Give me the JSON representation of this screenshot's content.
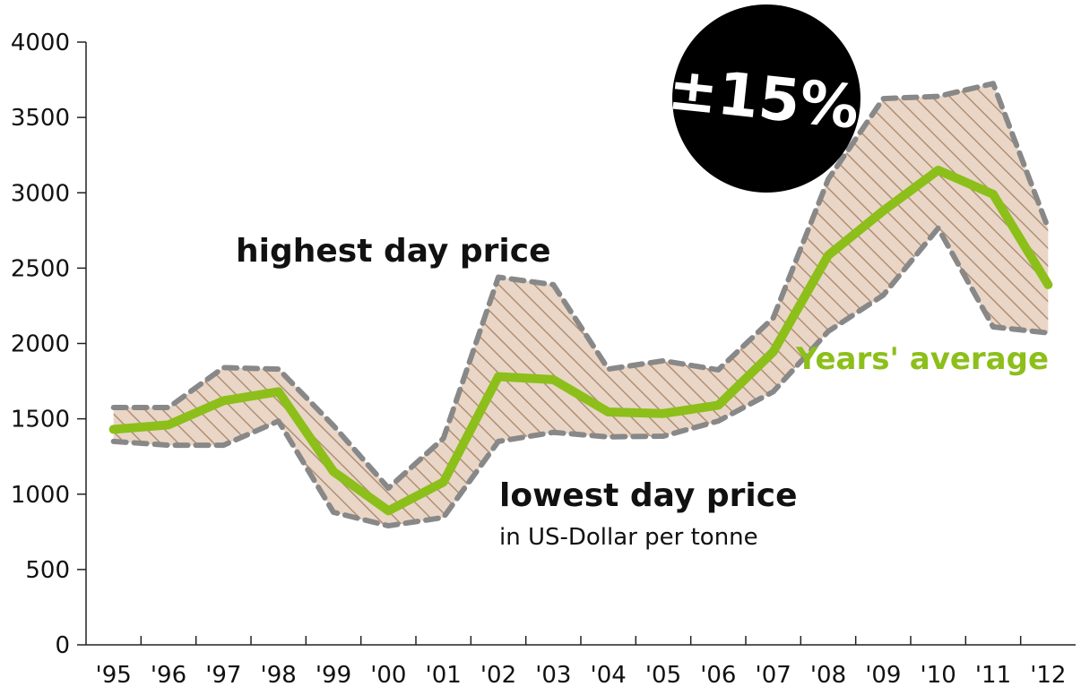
{
  "chart_data": {
    "type": "line",
    "subtitle": "in US-Dollar per tonne",
    "annotation": "±15%",
    "categories": [
      "'95",
      "'96",
      "'97",
      "'98",
      "'99",
      "'00",
      "'01",
      "'02",
      "'03",
      "'04",
      "'05",
      "'06",
      "'07",
      "'08",
      "'09",
      "'10",
      "'11",
      "'12"
    ],
    "series": [
      {
        "name": "highest day price",
        "color": "#888888",
        "values": [
          1575,
          1575,
          1840,
          1830,
          1455,
          1040,
          1370,
          2440,
          2390,
          1830,
          1885,
          1825,
          2170,
          3090,
          3625,
          3640,
          3725,
          2765
        ]
      },
      {
        "name": "lowest day price",
        "color": "#888888",
        "values": [
          1350,
          1325,
          1325,
          1485,
          880,
          790,
          845,
          1350,
          1410,
          1380,
          1385,
          1485,
          1680,
          2080,
          2320,
          2765,
          2110,
          2070
        ]
      },
      {
        "name": "Years' average",
        "color": "#8cbf1a",
        "values": [
          1430,
          1460,
          1620,
          1680,
          1150,
          890,
          1080,
          1780,
          1760,
          1545,
          1535,
          1590,
          1945,
          2585,
          2880,
          3150,
          2990,
          2390
        ]
      }
    ],
    "ylim": [
      0,
      4000
    ],
    "yticks": [
      0,
      500,
      1000,
      1500,
      2000,
      2500,
      3000,
      3500,
      4000
    ],
    "band_color": "#e9d6c6",
    "hatch_color": "#b08f76"
  }
}
